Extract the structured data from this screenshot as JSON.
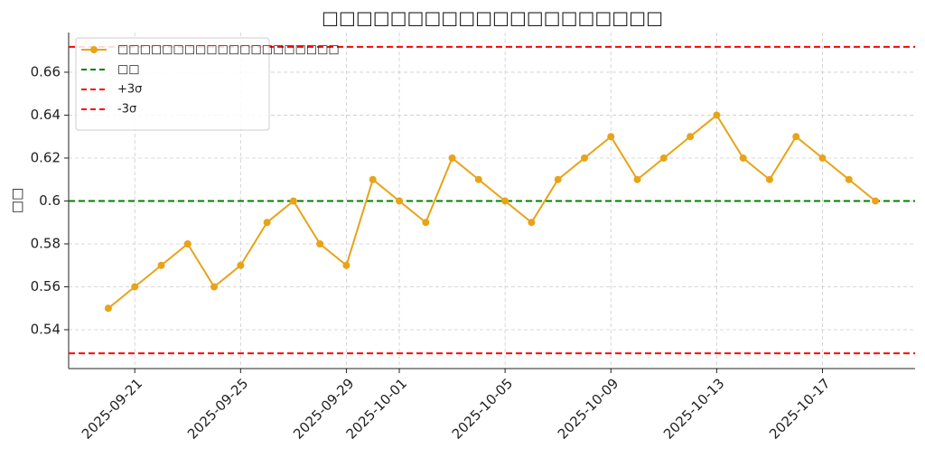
{
  "chart_data": {
    "type": "line",
    "title": "□□□□□□□□□□□□□□□□□□□□",
    "ylabel": "□□",
    "x": [
      "2025-09-20",
      "2025-09-21",
      "2025-09-22",
      "2025-09-23",
      "2025-09-24",
      "2025-09-25",
      "2025-09-26",
      "2025-09-27",
      "2025-09-28",
      "2025-09-29",
      "2025-09-30",
      "2025-10-01",
      "2025-10-02",
      "2025-10-03",
      "2025-10-04",
      "2025-10-05",
      "2025-10-06",
      "2025-10-07",
      "2025-10-08",
      "2025-10-09",
      "2025-10-10",
      "2025-10-11",
      "2025-10-12",
      "2025-10-13",
      "2025-10-14",
      "2025-10-15",
      "2025-10-16",
      "2025-10-17",
      "2025-10-18",
      "2025-10-19"
    ],
    "series": [
      {
        "name": "□□□□□□□□□□□□□□□□□□□□",
        "color": "#e8a317",
        "values": [
          0.55,
          0.56,
          0.57,
          0.58,
          0.56,
          0.57,
          0.59,
          0.6,
          0.58,
          0.57,
          0.61,
          0.6,
          0.59,
          0.62,
          0.61,
          0.6,
          0.59,
          0.61,
          0.62,
          0.63,
          0.61,
          0.62,
          0.63,
          0.64,
          0.62,
          0.61,
          0.63,
          0.62,
          0.61,
          0.6
        ]
      }
    ],
    "hlines": [
      {
        "name": "□□",
        "value": 0.6,
        "color": "#008000"
      },
      {
        "name": "+3σ",
        "value": 0.6718,
        "color": "#ff0000"
      },
      {
        "name": "-3σ",
        "value": 0.529,
        "color": "#ff0000"
      }
    ],
    "xlim": [
      "2025-09-18T12:00:00",
      "2025-10-20T12:00:00"
    ],
    "xticks": [
      "2025-09-21",
      "2025-09-25",
      "2025-09-29",
      "2025-10-01",
      "2025-10-05",
      "2025-10-09",
      "2025-10-13",
      "2025-10-17"
    ],
    "ylim": [
      0.5219,
      0.6785
    ],
    "yticks": [
      0.54,
      0.56,
      0.58,
      0.6,
      0.62,
      0.64,
      0.66
    ],
    "grid": true,
    "legend": "upper-left"
  }
}
